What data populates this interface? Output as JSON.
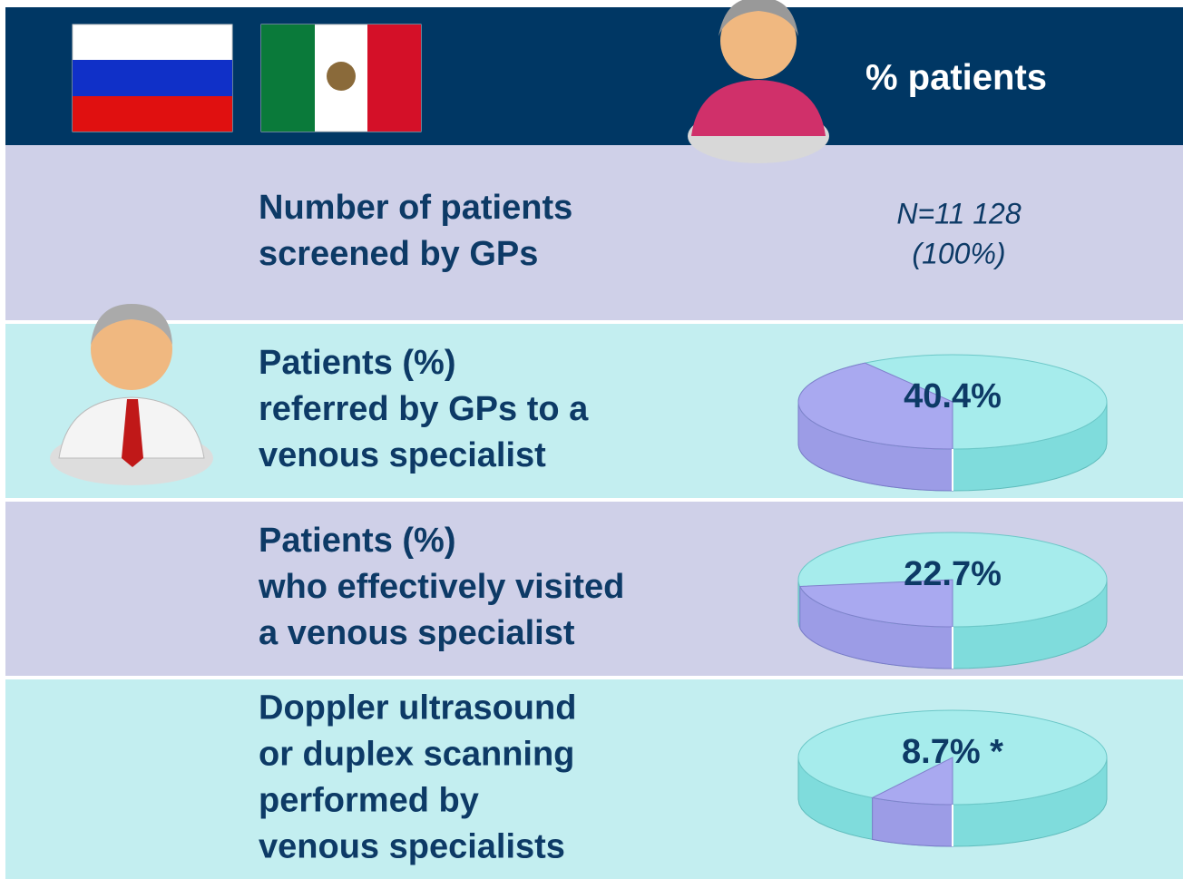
{
  "header": {
    "title": "% patients"
  },
  "rows": [
    {
      "label": [
        "Number of patients",
        "screened by GPs"
      ],
      "value_label": [
        "N=11 128",
        "(100%)"
      ]
    },
    {
      "label": [
        "Patients (%)",
        "referred by GPs to a",
        "venous specialist"
      ],
      "value": 40.4,
      "value_label": "40.4%"
    },
    {
      "label": [
        "Patients (%)",
        "who effectively visited",
        "a venous specialist"
      ],
      "value": 22.7,
      "value_label": "22.7%"
    },
    {
      "label": [
        "Doppler ultrasound",
        "or duplex scanning",
        "performed by",
        "venous specialists"
      ],
      "value": 8.7,
      "value_label": "8.7% *"
    }
  ]
}
